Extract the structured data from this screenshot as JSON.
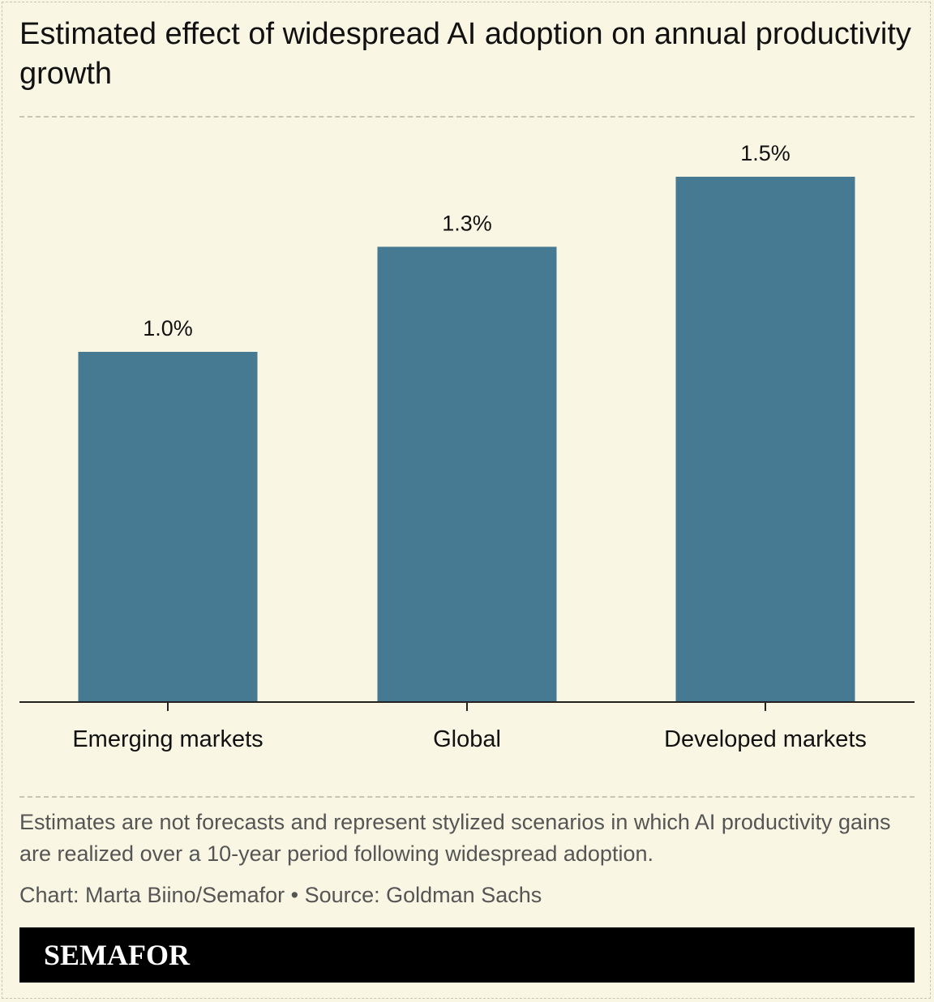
{
  "colors": {
    "background": "#f9f7e4",
    "bar": "#467a92",
    "axis": "#222222",
    "text": "#111111",
    "muted_text": "#555555",
    "brand_bg": "#000000",
    "brand_text": "#ffffff"
  },
  "chart_data": {
    "type": "bar",
    "title": "Estimated effect of widespread AI adoption on annual productivity growth",
    "categories": [
      "Emerging markets",
      "Global",
      "Developed markets"
    ],
    "values": [
      1.0,
      1.3,
      1.5
    ],
    "value_labels": [
      "1.0%",
      "1.3%",
      "1.5%"
    ],
    "xlabel": "",
    "ylabel": "",
    "ylim": [
      0,
      1.5
    ],
    "grid": false,
    "legend": "none"
  },
  "footer": {
    "note": "Estimates are not forecasts and represent stylized scenarios in which AI productivity gains are realized over a 10-year period following widespread adoption.",
    "credit": "Chart: Marta Biino/Semafor • Source: Goldman Sachs",
    "brand": "SEMAFOR"
  }
}
